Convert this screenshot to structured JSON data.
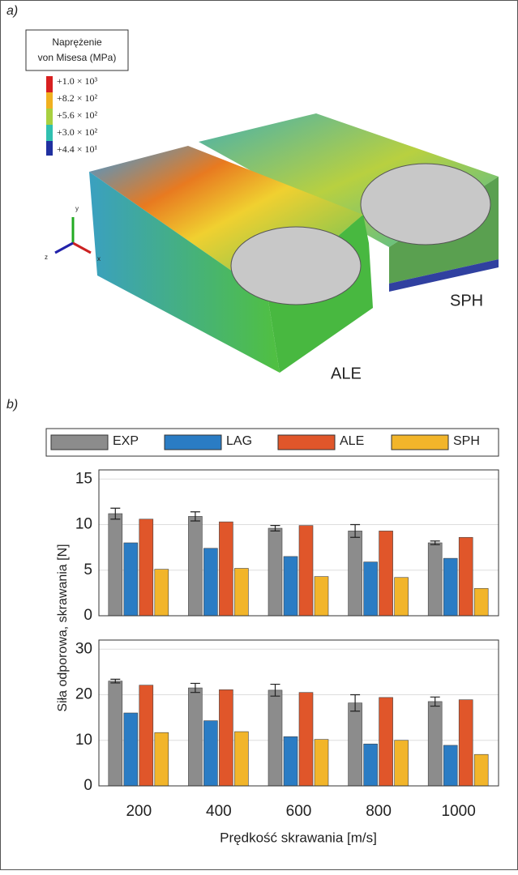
{
  "panel_a": {
    "label": "a)",
    "legend_title": [
      "Naprężenie",
      "von Misesa  (MPa)"
    ],
    "legend_entries": [
      "+1.0 × 10³",
      "+8.2 × 10²",
      "+5.6 × 10²",
      "+3.0 × 10²",
      "+4.4 × 10¹"
    ],
    "axes": [
      "y",
      "z",
      "x"
    ],
    "labels": [
      "ALE",
      "SPH"
    ]
  },
  "panel_b_label": "b)",
  "chart_data": [
    {
      "type": "bar",
      "ylabel": "Siła odporowa, skrawania [N]",
      "ylim": [
        0,
        16
      ],
      "yticks": [
        0,
        5,
        10,
        15
      ],
      "grid": true,
      "series": [
        {
          "name": "EXP",
          "color": "#8c8c8c",
          "values": [
            11.2,
            10.9,
            9.6,
            9.3,
            8.0
          ],
          "errors": [
            0.6,
            0.5,
            0.3,
            0.7,
            0.2
          ]
        },
        {
          "name": "LAG",
          "color": "#2a7cc4",
          "values": [
            8.0,
            7.4,
            6.5,
            5.9,
            6.3
          ]
        },
        {
          "name": "ALE",
          "color": "#e0562a",
          "values": [
            10.6,
            10.3,
            9.9,
            9.3,
            8.6
          ]
        },
        {
          "name": "SPH",
          "color": "#f2b52a",
          "values": [
            5.1,
            5.2,
            4.3,
            4.2,
            3.0
          ]
        }
      ]
    },
    {
      "type": "bar",
      "xlabel": "Prędkość skrawania [m/s]",
      "categories": [
        "200",
        "400",
        "600",
        "800",
        "1000"
      ],
      "ylim": [
        0,
        32
      ],
      "yticks": [
        0,
        10,
        20,
        30
      ],
      "grid": true,
      "series": [
        {
          "color": "#8c8c8c",
          "values": [
            23.0,
            21.5,
            21.0,
            18.2,
            18.5
          ],
          "errors": [
            0.4,
            1.0,
            1.3,
            1.8,
            1.0
          ]
        },
        {
          "color": "#2a7cc4",
          "values": [
            16.0,
            14.3,
            10.8,
            9.2,
            8.9
          ]
        },
        {
          "color": "#e0562a",
          "values": [
            22.1,
            21.1,
            20.5,
            19.4,
            18.9
          ]
        },
        {
          "color": "#f2b52a",
          "values": [
            11.7,
            11.9,
            10.2,
            10.0,
            6.9
          ]
        }
      ]
    }
  ]
}
